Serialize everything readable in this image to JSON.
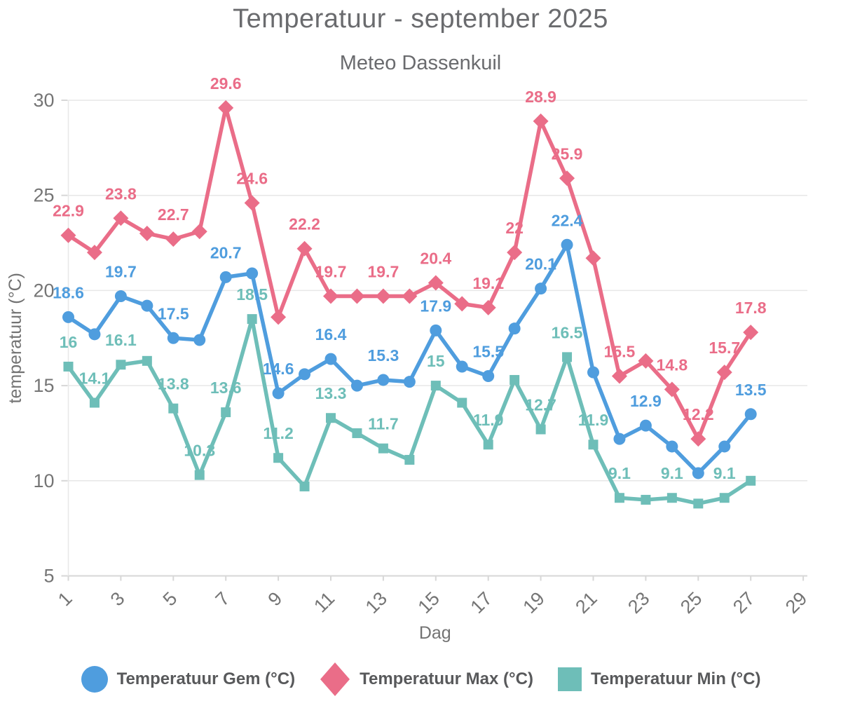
{
  "title": "Temperatuur - september 2025",
  "subtitle": "Meteo Dassenkuil",
  "chart_data": {
    "type": "line",
    "title": "Temperatuur - september 2025",
    "subtitle": "Meteo Dassenkuil",
    "xlabel": "Dag",
    "ylabel": "temperatuur (°C)",
    "ylim": [
      5,
      30
    ],
    "yticks": [
      5,
      10,
      15,
      20,
      25,
      30
    ],
    "xticks": [
      1,
      3,
      5,
      7,
      9,
      11,
      13,
      15,
      17,
      19,
      21,
      23,
      25,
      27,
      29
    ],
    "grid": "horizontal",
    "legend_position": "bottom",
    "x": [
      1,
      2,
      3,
      4,
      5,
      6,
      7,
      8,
      9,
      10,
      11,
      12,
      13,
      14,
      15,
      16,
      17,
      18,
      19,
      20,
      21,
      22,
      23,
      24,
      25,
      26,
      27
    ],
    "series": [
      {
        "id": "gem",
        "name": "Temperatuur Gem (°C)",
        "color": "#4f9dde",
        "marker": "circle",
        "values": [
          18.6,
          17.7,
          19.7,
          19.2,
          17.5,
          17.4,
          20.7,
          20.9,
          14.6,
          15.6,
          16.4,
          15.0,
          15.3,
          15.2,
          17.9,
          16.0,
          15.5,
          18.0,
          20.1,
          22.4,
          15.7,
          12.2,
          12.9,
          11.8,
          10.4,
          11.8,
          13.5
        ],
        "labeled_days": [
          1,
          3,
          5,
          7,
          9,
          11,
          13,
          15,
          17,
          19,
          20,
          23,
          27
        ]
      },
      {
        "id": "max",
        "name": "Temperatuur Max (°C)",
        "color": "#ea6d88",
        "marker": "diamond",
        "values": [
          22.9,
          22.0,
          23.8,
          23.0,
          22.7,
          23.1,
          29.6,
          24.6,
          18.6,
          22.2,
          19.7,
          19.7,
          19.7,
          19.7,
          20.4,
          19.3,
          19.1,
          22.0,
          28.9,
          25.9,
          21.7,
          15.5,
          16.3,
          14.8,
          12.2,
          15.7,
          17.8
        ],
        "labeled_days": [
          1,
          3,
          5,
          7,
          8,
          10,
          11,
          13,
          15,
          17,
          18,
          19,
          20,
          22,
          24,
          25,
          26,
          27
        ]
      },
      {
        "id": "min",
        "name": "Temperatuur Min (°C)",
        "color": "#6ebeb8",
        "marker": "square",
        "values": [
          16.0,
          14.1,
          16.1,
          16.3,
          13.8,
          10.3,
          13.6,
          18.5,
          11.2,
          9.7,
          13.3,
          12.5,
          11.7,
          11.1,
          15.0,
          14.1,
          11.9,
          15.3,
          12.7,
          16.5,
          11.9,
          9.1,
          9.0,
          9.1,
          8.8,
          9.1,
          10.0
        ],
        "labeled_days": [
          1,
          2,
          3,
          5,
          6,
          7,
          8,
          9,
          11,
          13,
          15,
          17,
          19,
          20,
          21,
          22,
          24,
          26
        ]
      }
    ],
    "colors": {
      "grid": "#e7e7e7",
      "axis": "#d7d7d7",
      "tick_text": "#757575",
      "axis_title_text": "#737373",
      "title_text": "#6a6b6e",
      "legend_text": "#58595b"
    }
  }
}
